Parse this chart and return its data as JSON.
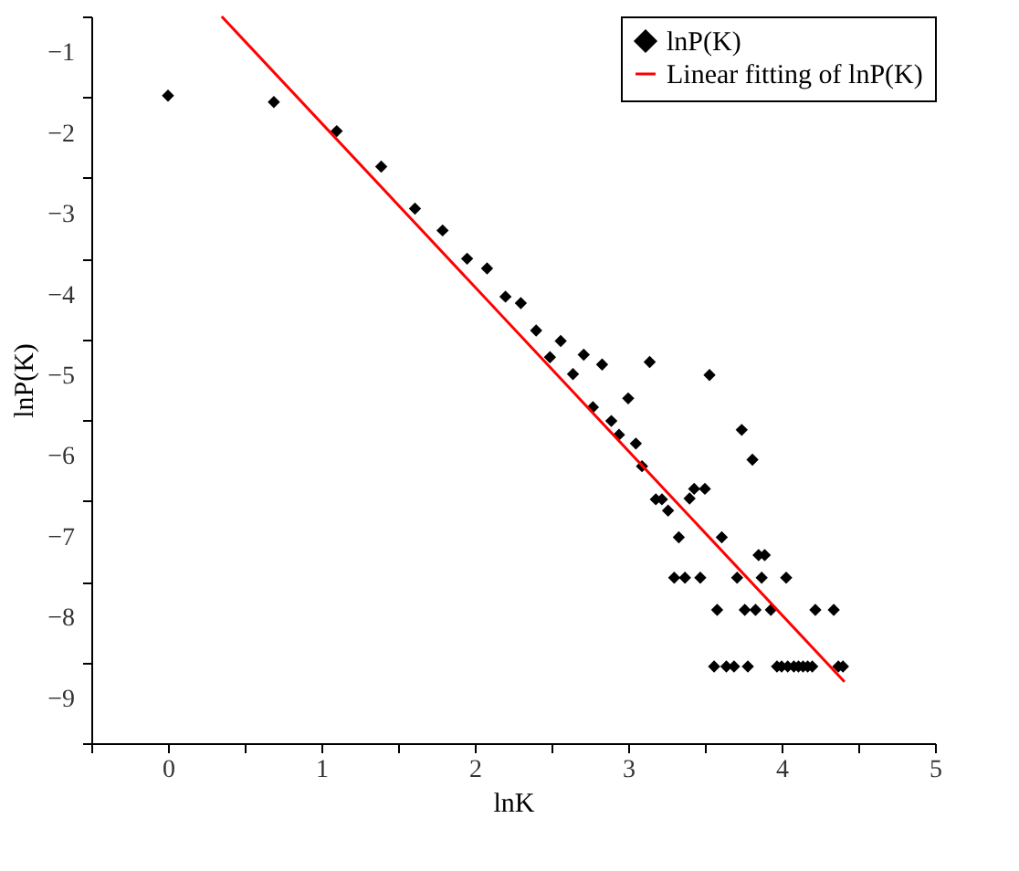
{
  "chart_data": {
    "type": "scatter",
    "xlabel": "lnK",
    "ylabel": "lnP(K)",
    "xlim": [
      -0.5,
      5
    ],
    "ylim": [
      -9.5,
      -0.5
    ],
    "xticks": [
      {
        "value": -0.5,
        "label": null
      },
      0,
      {
        "value": 0.5,
        "label": null
      },
      1,
      {
        "value": 1.5,
        "label": null
      },
      2,
      {
        "value": 2.5,
        "label": null
      },
      3,
      {
        "value": 3.5,
        "label": null
      },
      4,
      {
        "value": 4.5,
        "label": null
      },
      5
    ],
    "yticks": [
      {
        "value": -9.5,
        "label": null
      },
      {
        "value": -9,
        "label": "−9"
      },
      {
        "value": -8.5,
        "label": null
      },
      {
        "value": -8,
        "label": "−8"
      },
      {
        "value": -7.5,
        "label": null
      },
      {
        "value": -7,
        "label": "−7"
      },
      {
        "value": -6.5,
        "label": null
      },
      {
        "value": -6,
        "label": "−6"
      },
      {
        "value": -5.5,
        "label": null
      },
      {
        "value": -5,
        "label": "−5"
      },
      {
        "value": -4.5,
        "label": null
      },
      {
        "value": -4,
        "label": "−4"
      },
      {
        "value": -3.5,
        "label": null
      },
      {
        "value": -3,
        "label": "−3"
      },
      {
        "value": -2.5,
        "label": null
      },
      {
        "value": -2,
        "label": "−2"
      },
      {
        "value": -1.5,
        "label": null
      },
      {
        "value": -1,
        "label": "−1"
      },
      {
        "value": -0.5,
        "label": null
      }
    ],
    "grid": false,
    "legend": "top right",
    "series": [
      {
        "name": "lnP(K)",
        "marker": "diamond",
        "color": "#000000",
        "x": [
          0,
          0.69,
          1.1,
          1.39,
          1.61,
          1.79,
          1.95,
          2.08,
          2.2,
          2.3,
          2.4,
          2.49,
          2.56,
          2.64,
          2.71,
          2.77,
          2.83,
          2.89,
          2.94,
          3.0,
          3.05,
          3.09,
          3.14,
          3.18,
          3.22,
          3.26,
          3.3,
          3.33,
          3.37,
          3.4,
          3.43,
          3.47,
          3.5,
          3.53,
          3.56,
          3.58,
          3.61,
          3.64,
          3.69,
          3.71,
          3.74,
          3.76,
          3.78,
          3.81,
          3.83,
          3.85,
          3.87,
          3.89,
          3.93,
          3.97,
          4.0,
          4.03,
          4.04,
          4.08,
          4.11,
          4.14,
          4.17,
          4.2,
          4.22,
          4.34,
          4.37,
          4.4
        ],
        "values": [
          -1.48,
          -1.56,
          -1.92,
          -2.36,
          -2.88,
          -3.15,
          -3.5,
          -3.62,
          -3.97,
          -4.05,
          -4.39,
          -4.72,
          -4.52,
          -4.93,
          -4.69,
          -5.34,
          -4.81,
          -5.51,
          -5.68,
          -5.23,
          -5.79,
          -6.07,
          -4.78,
          -6.48,
          -6.48,
          -6.62,
          -7.45,
          -6.95,
          -7.45,
          -6.47,
          -6.35,
          -7.45,
          -6.35,
          -4.94,
          -8.55,
          -7.85,
          -6.95,
          -8.55,
          -8.55,
          -7.45,
          -5.62,
          -7.85,
          -8.55,
          -5.99,
          -7.85,
          -7.17,
          -7.45,
          -7.17,
          -7.85,
          -8.55,
          -8.55,
          -7.45,
          -8.55,
          -8.55,
          -8.55,
          -8.55,
          -8.55,
          -8.55,
          -7.85,
          -7.85,
          -8.55,
          -8.55
        ]
      },
      {
        "name": "Linear fitting of lnP(K)",
        "type": "line",
        "line_style": "solid",
        "marker": "none",
        "color": "#ff0000",
        "x": [
          0.35,
          4.41
        ],
        "values": [
          -0.5,
          -8.74
        ]
      }
    ]
  }
}
